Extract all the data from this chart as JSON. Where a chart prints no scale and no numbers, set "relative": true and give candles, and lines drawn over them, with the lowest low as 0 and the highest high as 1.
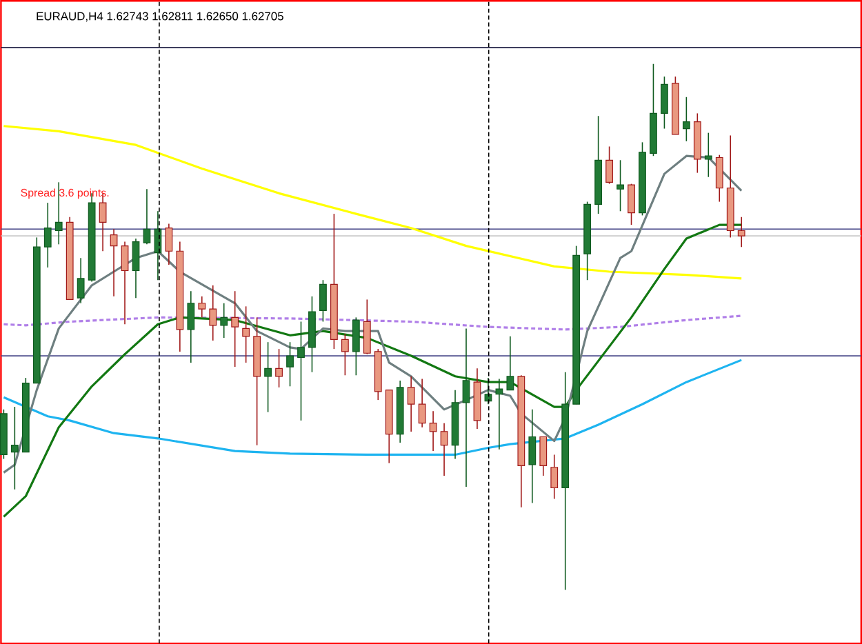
{
  "chart_data": {
    "type": "candlestick",
    "relative": true,
    "title": "EURAUD,H4  1.62743 1.62811 1.62650 1.62705",
    "annotations": [
      "Spread  3.6 points."
    ],
    "categories": [
      null,
      null,
      null,
      null,
      null,
      null,
      null,
      null,
      null,
      null,
      null,
      null,
      null,
      null,
      null,
      null,
      null,
      null,
      null,
      null,
      null,
      null,
      null,
      null,
      null,
      null,
      null,
      null,
      null,
      null,
      null,
      null,
      null,
      null,
      null,
      null,
      null,
      null,
      null,
      null,
      null,
      null,
      null,
      null,
      null,
      null,
      null,
      null,
      null,
      null,
      null,
      null,
      null,
      null,
      null,
      null,
      null,
      null,
      null,
      null,
      null,
      null,
      null,
      null,
      null,
      null,
      null,
      null
    ],
    "ohlc": [
      [
        0.257,
        0.343,
        0.249,
        0.335
      ],
      [
        0.262,
        0.348,
        0.191,
        0.275
      ],
      [
        0.262,
        0.403,
        0.262,
        0.393
      ],
      [
        0.393,
        0.67,
        0.393,
        0.652
      ],
      [
        0.652,
        0.736,
        0.613,
        0.688
      ],
      [
        0.683,
        0.775,
        0.657,
        0.699
      ],
      [
        0.699,
        0.709,
        0.552,
        0.552
      ],
      [
        0.555,
        0.631,
        0.545,
        0.592
      ],
      [
        0.589,
        0.754,
        0.586,
        0.736
      ],
      [
        0.736,
        0.754,
        0.644,
        0.699
      ],
      [
        0.675,
        0.686,
        0.558,
        0.654
      ],
      [
        0.654,
        0.662,
        0.505,
        0.607
      ],
      [
        0.607,
        0.668,
        0.555,
        0.662
      ],
      [
        0.66,
        0.762,
        0.657,
        0.686
      ],
      [
        0.641,
        0.72,
        0.589,
        0.686
      ],
      [
        0.688,
        0.696,
        0.618,
        0.644
      ],
      [
        0.644,
        0.662,
        0.453,
        0.495
      ],
      [
        0.495,
        0.568,
        0.432,
        0.545
      ],
      [
        0.545,
        0.558,
        0.518,
        0.534
      ],
      [
        0.534,
        0.579,
        0.474,
        0.503
      ],
      [
        0.503,
        0.545,
        0.479,
        0.518
      ],
      [
        0.518,
        0.568,
        0.424,
        0.5
      ],
      [
        0.497,
        0.539,
        0.432,
        0.482
      ],
      [
        0.482,
        0.518,
        0.275,
        0.406
      ],
      [
        0.406,
        0.471,
        0.338,
        0.421
      ],
      [
        0.421,
        0.458,
        0.385,
        0.406
      ],
      [
        0.424,
        0.471,
        0.387,
        0.445
      ],
      [
        0.442,
        0.51,
        0.322,
        0.461
      ],
      [
        0.461,
        0.558,
        0.414,
        0.529
      ],
      [
        0.531,
        0.589,
        0.51,
        0.581
      ],
      [
        0.581,
        0.715,
        0.458,
        0.476
      ],
      [
        0.476,
        0.487,
        0.408,
        0.453
      ],
      [
        0.453,
        0.518,
        0.408,
        0.513
      ],
      [
        0.51,
        0.552,
        0.448,
        0.45
      ],
      [
        0.453,
        0.458,
        0.361,
        0.377
      ],
      [
        0.38,
        0.38,
        0.241,
        0.296
      ],
      [
        0.296,
        0.398,
        0.28,
        0.385
      ],
      [
        0.385,
        0.406,
        0.301,
        0.353
      ],
      [
        0.353,
        0.401,
        0.309,
        0.317
      ],
      [
        0.317,
        0.34,
        0.264,
        0.301
      ],
      [
        0.301,
        0.317,
        0.217,
        0.275
      ],
      [
        0.275,
        0.38,
        0.249,
        0.356
      ],
      [
        0.356,
        0.497,
        0.196,
        0.398
      ],
      [
        0.395,
        0.421,
        0.306,
        0.322
      ],
      [
        0.359,
        0.403,
        0.353,
        0.372
      ],
      [
        0.372,
        0.401,
        0.267,
        0.382
      ],
      [
        0.38,
        0.482,
        0.38,
        0.406
      ],
      [
        0.406,
        0.408,
        0.157,
        0.236
      ],
      [
        0.238,
        0.343,
        0.165,
        0.291
      ],
      [
        0.291,
        0.291,
        0.217,
        0.236
      ],
      [
        0.233,
        0.257,
        0.173,
        0.194
      ],
      [
        0.194,
        0.414,
        0,
        0.353
      ],
      [
        0.353,
        0.654,
        0.353,
        0.636
      ],
      [
        0.639,
        0.738,
        0.589,
        0.733
      ],
      [
        0.733,
        0.901,
        0.715,
        0.817
      ],
      [
        0.817,
        0.843,
        0.772,
        0.775
      ],
      [
        0.762,
        0.817,
        0.72,
        0.77
      ],
      [
        0.77,
        0.772,
        0.694,
        0.717
      ],
      [
        0.717,
        0.851,
        0.712,
        0.832
      ],
      [
        0.83,
        1,
        0.825,
        0.906
      ],
      [
        0.906,
        0.976,
        0.877,
        0.961
      ],
      [
        0.963,
        0.976,
        0.866,
        0.866
      ],
      [
        0.877,
        0.937,
        0.853,
        0.89
      ],
      [
        0.89,
        0.906,
        0.793,
        0.819
      ],
      [
        0.819,
        0.869,
        0.785,
        0.825
      ],
      [
        0.822,
        0.827,
        0.738,
        0.764
      ],
      [
        0.764,
        0.864,
        0.67,
        0.683
      ],
      [
        0.683,
        0.709,
        0.652,
        0.673
      ]
    ],
    "series": [
      {
        "type": "line",
        "color": "#ffff00",
        "values": [
          0.882,
          null,
          null,
          null,
          null,
          0.872,
          null,
          null,
          null,
          null,
          null,
          null,
          0.846,
          null,
          null,
          null,
          null,
          null,
          0.801,
          null,
          null,
          null,
          null,
          null,
          null,
          0.754,
          null,
          null,
          null,
          null,
          null,
          null,
          0.715,
          null,
          null,
          null,
          null,
          0.688,
          null,
          null,
          null,
          null,
          0.654,
          null,
          null,
          null,
          null,
          null,
          null,
          null,
          0.615,
          null,
          null,
          null,
          null,
          0.605,
          null,
          null,
          null,
          null,
          null,
          null,
          0.599,
          null,
          null,
          null,
          null,
          0.592
        ]
      },
      {
        "type": "line",
        "color": "#b07fe8",
        "line_style": "dashed",
        "values": [
          0.505,
          null,
          0.503,
          null,
          null,
          null,
          0.51,
          null,
          null,
          null,
          null,
          null,
          null,
          null,
          0.518,
          null,
          null,
          null,
          null,
          null,
          null,
          null,
          null,
          null,
          null,
          null,
          0.516,
          null,
          null,
          null,
          null,
          null,
          null,
          null,
          null,
          null,
          null,
          0.51,
          null,
          null,
          null,
          null,
          null,
          null,
          0.5,
          null,
          null,
          null,
          null,
          null,
          null,
          0.495,
          null,
          null,
          null,
          null,
          0.5,
          null,
          null,
          null,
          null,
          null,
          0.513,
          null,
          null,
          null,
          null,
          0.521
        ]
      },
      {
        "type": "line",
        "color": "#1eb4f0",
        "values": [
          0.366,
          null,
          null,
          null,
          0.33,
          null,
          0.322,
          null,
          null,
          null,
          0.298,
          null,
          null,
          null,
          0.288,
          null,
          null,
          null,
          null,
          null,
          null,
          0.264,
          null,
          null,
          null,
          null,
          0.259,
          null,
          null,
          null,
          null,
          null,
          null,
          0.257,
          null,
          null,
          null,
          null,
          null,
          null,
          null,
          0.257,
          null,
          null,
          0.27,
          null,
          0.277,
          null,
          null,
          null,
          null,
          0.288,
          null,
          null,
          0.314,
          null,
          null,
          null,
          0.353,
          null,
          null,
          null,
          0.395,
          null,
          null,
          null,
          null,
          0.437
        ]
      },
      {
        "type": "line",
        "color": "#127812",
        "values": [
          0.139,
          null,
          0.178,
          null,
          null,
          0.309,
          null,
          null,
          0.387,
          null,
          null,
          0.448,
          null,
          null,
          0.505,
          null,
          0.518,
          null,
          null,
          null,
          null,
          0.513,
          null,
          null,
          null,
          null,
          0.484,
          null,
          null,
          0.492,
          null,
          null,
          null,
          0.479,
          null,
          null,
          null,
          0.445,
          null,
          null,
          null,
          0.406,
          null,
          null,
          0.395,
          null,
          0.395,
          null,
          null,
          null,
          0.348,
          0.348,
          0.38,
          null,
          null,
          null,
          null,
          0.518,
          null,
          null,
          0.61,
          null,
          0.668,
          null,
          null,
          0.694,
          null,
          0.694
        ]
      },
      {
        "type": "line",
        "color": "#6e7f80",
        "values": [
          0.223,
          0.238,
          null,
          0.38,
          null,
          0.497,
          null,
          null,
          0.579,
          null,
          0.605,
          null,
          0.631,
          null,
          0.644,
          null,
          0.605,
          null,
          null,
          null,
          null,
          0.545,
          null,
          0.492,
          null,
          null,
          0.461,
          0.458,
          null,
          0.497,
          null,
          0.492,
          null,
          null,
          0.492,
          0.432,
          null,
          0.406,
          null,
          null,
          0.343,
          null,
          0.361,
          null,
          0.38,
          null,
          0.369,
          0.335,
          null,
          null,
          0.283,
          0.327,
          null,
          0.492,
          null,
          null,
          0.631,
          0.644,
          null,
          null,
          0.791,
          null,
          0.825,
          null,
          0.822,
          null,
          null,
          0.759
        ]
      }
    ],
    "ref_lines": [
      {
        "axis": "y",
        "value": 1.031,
        "color": "#1a1a40"
      },
      {
        "axis": "y",
        "value": 0.686,
        "color": "#4a4a8a"
      },
      {
        "axis": "y",
        "value": 0.673,
        "color": "#c8c8c8"
      },
      {
        "axis": "y",
        "value": 0.445,
        "color": "#4a4a8a"
      }
    ]
  }
}
